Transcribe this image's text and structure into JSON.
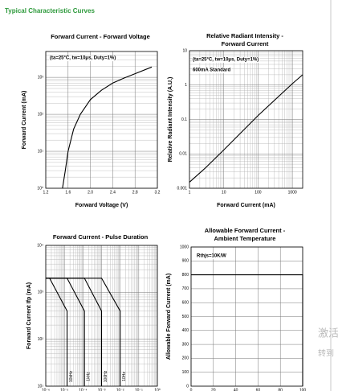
{
  "header": {
    "title": "Typical Characteristic Curves"
  },
  "watermark": [
    "激活",
    "转到"
  ],
  "chart_data": [
    {
      "type": "line",
      "title": [
        "Forward Current - Forward Voltage"
      ],
      "x_label": "Forward Voltage (V)",
      "y_label": "Forward Current (mA)",
      "annotations": [
        "(ta=25°C, tw=10μs, Duty=1%)"
      ],
      "xscale": "linear",
      "yscale": "log",
      "grid": true,
      "minor_grid": true,
      "xlim": [
        1.2,
        3.2
      ],
      "ylim": [
        1,
        5000
      ],
      "xticks": [
        1.2,
        1.6,
        {
          "value": 2,
          "label": "2.0"
        },
        2.4,
        2.8,
        3.2
      ],
      "yticks": [
        {
          "value": 1,
          "label": "10⁰"
        },
        {
          "value": 10,
          "label": "10¹"
        },
        {
          "value": 100,
          "label": "10²"
        },
        {
          "value": 1000,
          "label": "10³"
        }
      ],
      "series": [
        {
          "color": "#000000",
          "x": [
            1.5,
            1.55,
            1.6,
            1.7,
            1.82,
            2.0,
            2.2,
            2.4,
            2.6,
            2.8,
            3.1
          ],
          "values": [
            1,
            3,
            10,
            40,
            100,
            250,
            450,
            700,
            950,
            1250,
            1900
          ]
        }
      ]
    },
    {
      "type": "line",
      "title": [
        "Relative Radiant Intensity -",
        "Forward Current"
      ],
      "x_label": "Forward Current (mA)",
      "y_label": "Relative Radiant Intensity (A.U.)",
      "annotations": [
        "(ta=25°C, tw=10μs, Duty=1%)",
        "600mA Standard"
      ],
      "xscale": "log",
      "yscale": "log",
      "grid": true,
      "minor_grid": true,
      "xlim": [
        1,
        2000
      ],
      "ylim": [
        0.001,
        10
      ],
      "xticks": [
        1,
        10,
        100,
        1000
      ],
      "yticks": [
        0.001,
        0.01,
        0.1,
        1,
        10
      ],
      "series": [
        {
          "color": "#000000",
          "x": [
            1,
            3,
            10,
            100,
            1000,
            2000
          ],
          "values": [
            0.0015,
            0.004,
            0.013,
            0.13,
            1.1,
            2
          ]
        }
      ]
    },
    {
      "type": "line",
      "title": [
        "Forward Current - Pulse Duration"
      ],
      "y_label": "Forward Current Ifp (mA)",
      "xscale": "log",
      "yscale": "log",
      "grid": true,
      "minor_grid": true,
      "xlim": [
        1e-06,
        1
      ],
      "ylim": [
        10,
        10000
      ],
      "xticks": [
        {
          "value": 1e-06,
          "label": "10⁻⁶"
        },
        {
          "value": 1e-05,
          "label": "10⁻⁵"
        },
        {
          "value": 0.0001,
          "label": "10⁻⁴"
        },
        {
          "value": 0.001,
          "label": "10⁻³"
        },
        {
          "value": 0.01,
          "label": "10⁻²"
        },
        {
          "value": 0.1,
          "label": "10⁻¹"
        },
        {
          "value": 1,
          "label": "10⁰"
        }
      ],
      "yticks": [
        {
          "value": 10,
          "label": "10¹"
        },
        {
          "value": 100,
          "label": "10²"
        },
        {
          "value": 1000,
          "label": "10³"
        },
        {
          "value": 10000,
          "label": "10⁴"
        }
      ],
      "series": [
        {
          "name": "10kHz",
          "color": "#000000",
          "x": [
            1e-06,
            1.6e-06,
            1.4e-05,
            1.4e-05
          ],
          "values": [
            2000,
            2000,
            400,
            10
          ]
        },
        {
          "name": "1kHz",
          "color": "#000000",
          "x": [
            1e-06,
            1.4e-05,
            0.00012,
            0.00012
          ],
          "values": [
            2000,
            2000,
            400,
            10
          ]
        },
        {
          "name": "100Hz",
          "color": "#000000",
          "x": [
            1e-06,
            0.00012,
            0.001,
            0.001
          ],
          "values": [
            2000,
            2000,
            400,
            10
          ]
        },
        {
          "name": "10Hz",
          "color": "#000000",
          "x": [
            1e-06,
            0.001,
            0.01,
            0.01
          ],
          "values": [
            2000,
            2000,
            400,
            10
          ]
        }
      ]
    },
    {
      "type": "line",
      "title": [
        "Allowable Forward Current -",
        "Ambient Temperature"
      ],
      "y_label": "Allowable Forward Current (mA)",
      "annotations": [
        "Rthjs=10K/W"
      ],
      "xscale": "linear",
      "yscale": "linear",
      "grid": true,
      "minor_grid": false,
      "xlim": [
        0,
        100
      ],
      "ylim": [
        0,
        1000
      ],
      "xticks": [
        0,
        20,
        40,
        60,
        80,
        100
      ],
      "yticks": [
        0,
        100,
        200,
        300,
        400,
        500,
        600,
        700,
        800,
        900,
        1000
      ],
      "series": [
        {
          "color": "#000000",
          "x": [
            0,
            100,
            100
          ],
          "values": [
            800,
            800,
            0
          ]
        }
      ]
    }
  ]
}
